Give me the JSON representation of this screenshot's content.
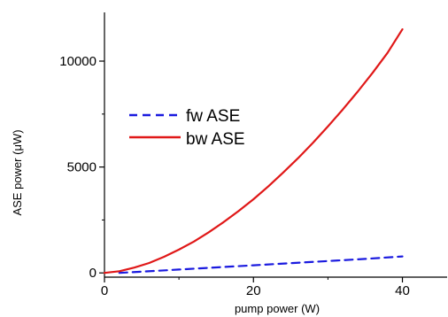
{
  "chart_data": {
    "type": "line",
    "xlabel": "pump power (W)",
    "ylabel": "ASE power (μW)",
    "xlim": [
      0,
      46
    ],
    "ylim": [
      -200,
      12300
    ],
    "xticks": [
      0,
      20,
      40
    ],
    "yticks": [
      0,
      5000,
      10000
    ],
    "grid": false,
    "legend_position": "center-left",
    "series": [
      {
        "name": "fw ASE",
        "style": "dashed",
        "color": "#1a1adf",
        "x": [
          2,
          5,
          10,
          15,
          20,
          25,
          30,
          35,
          40
        ],
        "y": [
          0,
          60,
          160,
          260,
          360,
          460,
          560,
          660,
          780
        ]
      },
      {
        "name": "bw ASE",
        "style": "solid",
        "color": "#e01818",
        "x": [
          0,
          2,
          4,
          6,
          8,
          10,
          12,
          14,
          16,
          18,
          20,
          22,
          24,
          26,
          28,
          30,
          32,
          34,
          36,
          38,
          40
        ],
        "y": [
          0,
          80,
          250,
          470,
          760,
          1100,
          1480,
          1920,
          2400,
          2920,
          3480,
          4090,
          4740,
          5420,
          6150,
          6920,
          7720,
          8560,
          9450,
          10390,
          11500
        ]
      }
    ]
  }
}
